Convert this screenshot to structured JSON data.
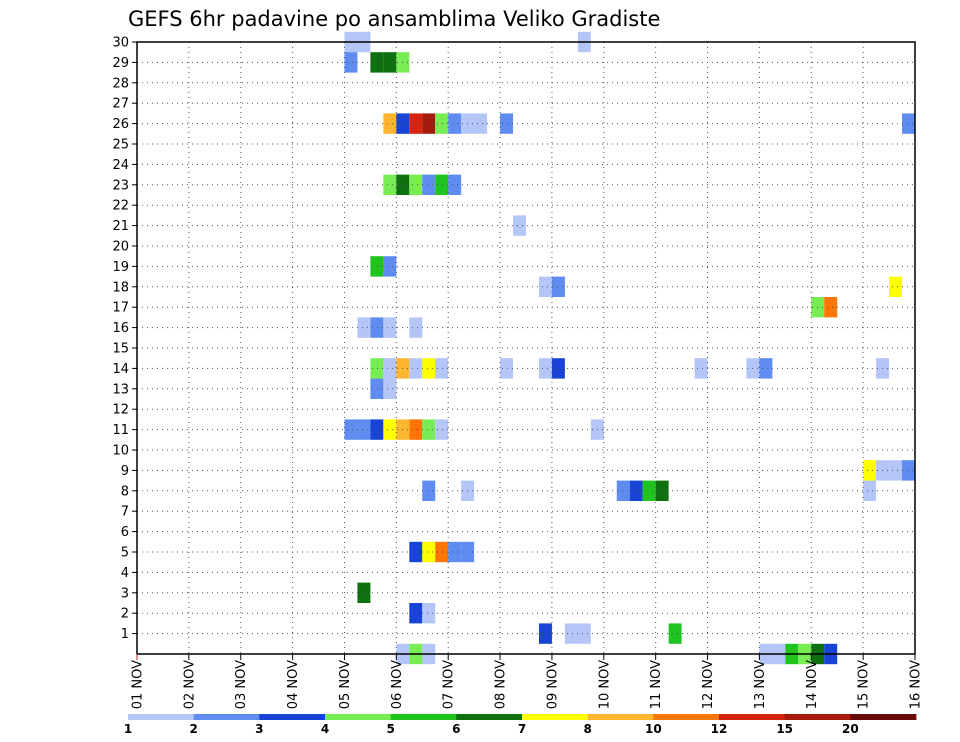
{
  "chart_data": {
    "type": "heatmap",
    "title": "GEFS 6hr padavine po ansamblima Veliko Gradiste",
    "xlabel": "",
    "ylabel": "",
    "x_ticks": [
      "01 NOV",
      "02 NOV",
      "03 NOV",
      "04 NOV",
      "05 NOV",
      "06 NOV",
      "07 NOV",
      "08 NOV",
      "09 NOV",
      "10 NOV",
      "11 NOV",
      "12 NOV",
      "13 NOV",
      "14 NOV",
      "15 NOV",
      "16 NOV"
    ],
    "xlim": [
      1,
      16
    ],
    "y_ticks": [
      "1",
      "2",
      "3",
      "4",
      "5",
      "6",
      "7",
      "8",
      "9",
      "10",
      "11",
      "12",
      "13",
      "14",
      "15",
      "16",
      "17",
      "18",
      "19",
      "20",
      "21",
      "22",
      "23",
      "24",
      "25",
      "26",
      "27",
      "28",
      "29",
      "30"
    ],
    "ylim": [
      0,
      30
    ],
    "grid": true,
    "time_step_hours": 6,
    "legend": {
      "placement": "bottom",
      "labels": [
        "1",
        "2",
        "3",
        "4",
        "5",
        "6",
        "7",
        "8",
        "10",
        "12",
        "15",
        "20"
      ],
      "colors": [
        "#b4c5f8",
        "#5f8cf0",
        "#1744d6",
        "#78ec53",
        "#1fc41f",
        "#0e700e",
        "#ffff00",
        "#fdb530",
        "#fb7605",
        "#d72410",
        "#a51a0a",
        "#670a0a"
      ]
    },
    "cells": [
      {
        "member": 30,
        "x": 5.125,
        "value": 1
      },
      {
        "member": 30,
        "x": 5.375,
        "value": 1
      },
      {
        "member": 30,
        "x": 9.625,
        "value": 1
      },
      {
        "member": 29,
        "x": 5.125,
        "value": 2
      },
      {
        "member": 29,
        "x": 5.625,
        "value": 6
      },
      {
        "member": 29,
        "x": 5.875,
        "value": 6
      },
      {
        "member": 29,
        "x": 6.125,
        "value": 4
      },
      {
        "member": 26,
        "x": 5.875,
        "value": 8
      },
      {
        "member": 26,
        "x": 6.125,
        "value": 3
      },
      {
        "member": 26,
        "x": 6.375,
        "value": 12
      },
      {
        "member": 26,
        "x": 6.625,
        "value": 15
      },
      {
        "member": 26,
        "x": 6.875,
        "value": 4
      },
      {
        "member": 26,
        "x": 7.125,
        "value": 2
      },
      {
        "member": 26,
        "x": 7.375,
        "value": 1
      },
      {
        "member": 26,
        "x": 7.625,
        "value": 1
      },
      {
        "member": 26,
        "x": 8.125,
        "value": 2
      },
      {
        "member": 26,
        "x": 15.875,
        "value": 2
      },
      {
        "member": 23,
        "x": 5.875,
        "value": 4
      },
      {
        "member": 23,
        "x": 6.125,
        "value": 6
      },
      {
        "member": 23,
        "x": 6.375,
        "value": 4
      },
      {
        "member": 23,
        "x": 6.625,
        "value": 2
      },
      {
        "member": 23,
        "x": 6.875,
        "value": 5
      },
      {
        "member": 23,
        "x": 7.125,
        "value": 2
      },
      {
        "member": 21,
        "x": 8.375,
        "value": 1
      },
      {
        "member": 19,
        "x": 5.625,
        "value": 5
      },
      {
        "member": 19,
        "x": 5.875,
        "value": 2
      },
      {
        "member": 18,
        "x": 8.875,
        "value": 1
      },
      {
        "member": 18,
        "x": 9.125,
        "value": 2
      },
      {
        "member": 18,
        "x": 15.625,
        "value": 7
      },
      {
        "member": 17,
        "x": 14.125,
        "value": 4
      },
      {
        "member": 17,
        "x": 14.375,
        "value": 10
      },
      {
        "member": 16,
        "x": 5.375,
        "value": 1
      },
      {
        "member": 16,
        "x": 5.625,
        "value": 2
      },
      {
        "member": 16,
        "x": 5.875,
        "value": 1
      },
      {
        "member": 16,
        "x": 6.375,
        "value": 1
      },
      {
        "member": 14,
        "x": 5.625,
        "value": 4
      },
      {
        "member": 14,
        "x": 5.875,
        "value": 1
      },
      {
        "member": 14,
        "x": 6.125,
        "value": 8
      },
      {
        "member": 14,
        "x": 6.375,
        "value": 1
      },
      {
        "member": 14,
        "x": 6.625,
        "value": 7
      },
      {
        "member": 14,
        "x": 6.875,
        "value": 1
      },
      {
        "member": 14,
        "x": 8.125,
        "value": 1
      },
      {
        "member": 14,
        "x": 8.875,
        "value": 1
      },
      {
        "member": 14,
        "x": 9.125,
        "value": 3
      },
      {
        "member": 14,
        "x": 11.875,
        "value": 1
      },
      {
        "member": 14,
        "x": 12.875,
        "value": 1
      },
      {
        "member": 14,
        "x": 13.125,
        "value": 2
      },
      {
        "member": 14,
        "x": 15.375,
        "value": 1
      },
      {
        "member": 13,
        "x": 5.625,
        "value": 2
      },
      {
        "member": 13,
        "x": 5.875,
        "value": 1
      },
      {
        "member": 11,
        "x": 5.125,
        "value": 2
      },
      {
        "member": 11,
        "x": 5.375,
        "value": 2
      },
      {
        "member": 11,
        "x": 5.625,
        "value": 3
      },
      {
        "member": 11,
        "x": 5.875,
        "value": 7
      },
      {
        "member": 11,
        "x": 6.125,
        "value": 8
      },
      {
        "member": 11,
        "x": 6.375,
        "value": 10
      },
      {
        "member": 11,
        "x": 6.625,
        "value": 4
      },
      {
        "member": 11,
        "x": 6.875,
        "value": 1
      },
      {
        "member": 11,
        "x": 9.875,
        "value": 1
      },
      {
        "member": 9,
        "x": 15.125,
        "value": 7
      },
      {
        "member": 9,
        "x": 15.375,
        "value": 1
      },
      {
        "member": 9,
        "x": 15.625,
        "value": 1
      },
      {
        "member": 9,
        "x": 15.875,
        "value": 2
      },
      {
        "member": 8,
        "x": 6.625,
        "value": 2
      },
      {
        "member": 8,
        "x": 7.375,
        "value": 1
      },
      {
        "member": 8,
        "x": 10.375,
        "value": 2
      },
      {
        "member": 8,
        "x": 10.625,
        "value": 3
      },
      {
        "member": 8,
        "x": 10.875,
        "value": 5
      },
      {
        "member": 8,
        "x": 11.125,
        "value": 6
      },
      {
        "member": 8,
        "x": 15.125,
        "value": 1
      },
      {
        "member": 5,
        "x": 6.375,
        "value": 3
      },
      {
        "member": 5,
        "x": 6.625,
        "value": 7
      },
      {
        "member": 5,
        "x": 6.875,
        "value": 10
      },
      {
        "member": 5,
        "x": 7.125,
        "value": 2
      },
      {
        "member": 5,
        "x": 7.375,
        "value": 2
      },
      {
        "member": 3,
        "x": 5.375,
        "value": 6
      },
      {
        "member": 2,
        "x": 6.375,
        "value": 3
      },
      {
        "member": 2,
        "x": 6.625,
        "value": 1
      },
      {
        "member": 1,
        "x": 8.875,
        "value": 3
      },
      {
        "member": 1,
        "x": 9.375,
        "value": 1
      },
      {
        "member": 1,
        "x": 9.625,
        "value": 1
      },
      {
        "member": 1,
        "x": 11.375,
        "value": 5
      },
      {
        "member": 0,
        "x": 6.125,
        "value": 1
      },
      {
        "member": 0,
        "x": 6.375,
        "value": 4
      },
      {
        "member": 0,
        "x": 6.625,
        "value": 1
      },
      {
        "member": 0,
        "x": 13.125,
        "value": 1
      },
      {
        "member": 0,
        "x": 13.375,
        "value": 1
      },
      {
        "member": 0,
        "x": 13.625,
        "value": 5
      },
      {
        "member": 0,
        "x": 13.875,
        "value": 4
      },
      {
        "member": 0,
        "x": 14.125,
        "value": 6
      },
      {
        "member": 0,
        "x": 14.375,
        "value": 3
      }
    ]
  }
}
